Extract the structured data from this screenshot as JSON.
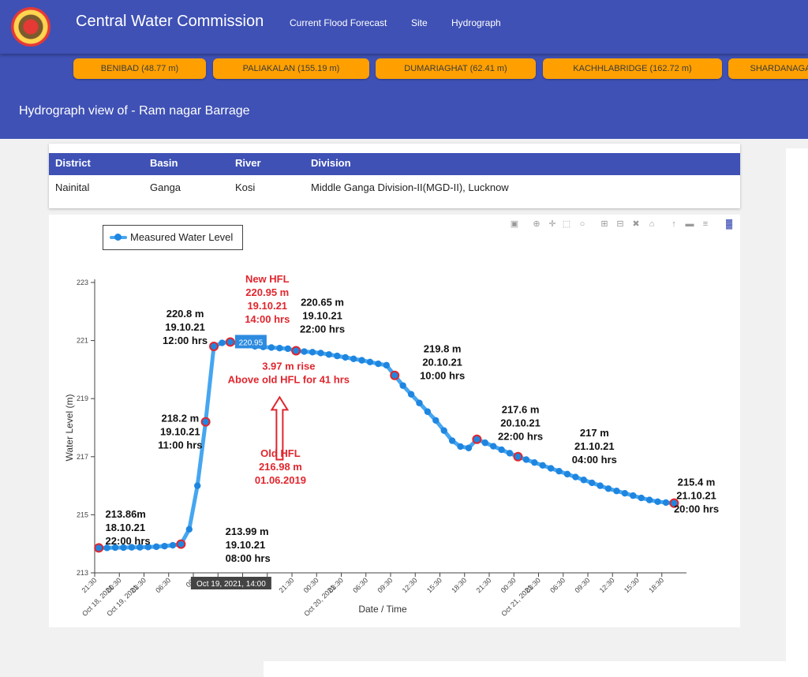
{
  "nav": {
    "brand": "Central Water Commission",
    "links": [
      "Current Flood Forecast",
      "Site",
      "Hydrograph"
    ]
  },
  "stations": [
    "BENIBAD (48.77 m)",
    "PALIAKALAN (155.19 m)",
    "DUMARIAGHAT (62.41 m)",
    "KACHHLABRIDGE (162.72 m)",
    "SHARDANAGAR"
  ],
  "page": {
    "title": "Hydrograph view of - Ram nagar Barrage"
  },
  "info": {
    "headers": {
      "district": "District",
      "basin": "Basin",
      "river": "River",
      "division": "Division"
    },
    "values": {
      "district": "Nainital",
      "basin": "Ganga",
      "river": "Kosi",
      "division": "Middle Ganga Division-II(MGD-II), Lucknow"
    }
  },
  "chart_data": {
    "type": "line",
    "series": [
      {
        "name": "Measured Water Level",
        "color": "#46a6f0",
        "marker_color": "#1f86e0"
      }
    ],
    "x_unit": "hours since 21:30, Oct 18, 2021",
    "x": [
      0.5,
      1.5,
      2.5,
      3.5,
      4.5,
      5.5,
      6.5,
      7.5,
      8.5,
      9.5,
      10.5,
      11.5,
      12.5,
      13.5,
      14.5,
      15.5,
      16.5,
      17.5,
      18.5,
      19.5,
      20.5,
      21.5,
      22.5,
      23.5,
      24.5,
      25.5,
      26.5,
      27.5,
      28.5,
      29.5,
      30.5,
      31.5,
      32.5,
      33.5,
      34.5,
      35.5,
      36.5,
      37.5,
      38.5,
      39.5,
      40.5,
      41.5,
      42.5,
      43.5,
      44.5,
      45.5,
      46.5,
      47.5,
      48.5,
      49.5,
      50.5,
      51.5,
      52.5,
      53.5,
      54.5,
      55.5,
      56.5,
      57.5,
      58.5,
      59.5,
      60.5,
      61.5,
      62.5,
      63.5,
      64.5,
      65.5,
      66.5,
      67.5,
      68.5,
      69.5,
      70.5
    ],
    "y": [
      213.86,
      213.86,
      213.87,
      213.87,
      213.88,
      213.88,
      213.89,
      213.9,
      213.92,
      213.95,
      213.99,
      214.5,
      216.0,
      218.2,
      220.8,
      220.92,
      220.95,
      220.9,
      220.85,
      220.8,
      220.78,
      220.76,
      220.74,
      220.72,
      220.65,
      220.62,
      220.6,
      220.57,
      220.52,
      220.47,
      220.42,
      220.37,
      220.32,
      220.26,
      220.2,
      220.15,
      219.8,
      219.45,
      219.15,
      218.85,
      218.55,
      218.25,
      217.9,
      217.55,
      217.35,
      217.3,
      217.6,
      217.48,
      217.36,
      217.24,
      217.12,
      217.0,
      216.9,
      216.8,
      216.7,
      216.6,
      216.5,
      216.4,
      216.3,
      216.2,
      216.1,
      216.0,
      215.9,
      215.82,
      215.74,
      215.66,
      215.58,
      215.51,
      215.45,
      215.42,
      215.4
    ],
    "ylim": [
      213,
      223
    ],
    "yticks": [
      213,
      215,
      217,
      219,
      221,
      223
    ],
    "xticks": [
      {
        "x": 0,
        "label": "21:30"
      },
      {
        "x": 3,
        "label": "00:30\nOct 18, 2021"
      },
      {
        "x": 6,
        "label": "03:30\nOct 19, 2021"
      },
      {
        "x": 9,
        "label": "06:30"
      },
      {
        "x": 12,
        "label": "09:"
      },
      {
        "x": 15,
        "label": "12:"
      },
      {
        "x": 18,
        "label": "15:"
      },
      {
        "x": 21,
        "label": "18:"
      },
      {
        "x": 24,
        "label": "21:30"
      },
      {
        "x": 27,
        "label": "00:30"
      },
      {
        "x": 30,
        "label": "03:30\nOct 20, 2021"
      },
      {
        "x": 33,
        "label": "06:30"
      },
      {
        "x": 36,
        "label": "09:30"
      },
      {
        "x": 39,
        "label": "12:30"
      },
      {
        "x": 42,
        "label": "15:30"
      },
      {
        "x": 45,
        "label": "18:30"
      },
      {
        "x": 48,
        "label": "21:30"
      },
      {
        "x": 51,
        "label": "00:30"
      },
      {
        "x": 54,
        "label": "03:30\nOct 21, 2021"
      },
      {
        "x": 57,
        "label": "06:30"
      },
      {
        "x": 60,
        "label": "09:30"
      },
      {
        "x": 63,
        "label": "12:30"
      },
      {
        "x": 66,
        "label": "15:30"
      },
      {
        "x": 69,
        "label": "18:30"
      }
    ],
    "xlabel": "Date / Time",
    "ylabel": "Water Level (m)",
    "highlight_points": [
      0.5,
      10.5,
      13.5,
      14.5,
      16.5,
      24.5,
      36.5,
      46.5,
      51.5,
      70.5
    ],
    "hover": {
      "x": 16.5,
      "value_label": "220.95",
      "x_label": "Oct 19, 2021, 14:00"
    },
    "legend_position": "top-left",
    "annotations": [
      {
        "x": 1.3,
        "y": 214.9,
        "color": "#111",
        "lines": [
          "213.86m",
          "18.10.21",
          "22:00 hrs"
        ],
        "align": "start"
      },
      {
        "x": 15.9,
        "y": 214.3,
        "color": "#111",
        "lines": [
          "213.99 m",
          "19.10.21",
          "08:00 hrs"
        ],
        "align": "start"
      },
      {
        "x": 10.4,
        "y": 218.2,
        "color": "#111",
        "lines": [
          "218.2 m",
          "19.10.21",
          "11:00 hrs"
        ],
        "align": "middle"
      },
      {
        "x": 11.0,
        "y": 221.8,
        "color": "#111",
        "lines": [
          "220.8 m",
          "19.10.21",
          "12:00 hrs"
        ],
        "align": "middle"
      },
      {
        "x": 21.0,
        "y": 223.0,
        "color": "#e0262e",
        "lines": [
          "New HFL",
          "220.95 m",
          "19.10.21",
          "14:00 hrs"
        ],
        "align": "middle"
      },
      {
        "x": 27.7,
        "y": 222.2,
        "color": "#111",
        "lines": [
          "220.65 m",
          "19.10.21",
          "22:00 hrs"
        ],
        "align": "middle"
      },
      {
        "x": 23.6,
        "y": 220.0,
        "color": "#e0262e",
        "lines": [
          "3.97 m rise",
          "Above old HFL for 41 hrs"
        ],
        "align": "middle"
      },
      {
        "x": 22.6,
        "y": 217.0,
        "color": "#e0262e",
        "lines": [
          "Old HFL",
          "216.98 m",
          "01.06.2019"
        ],
        "align": "middle"
      },
      {
        "x": 42.3,
        "y": 220.6,
        "color": "#111",
        "lines": [
          "219.8 m",
          "20.10.21",
          "10:00 hrs"
        ],
        "align": "middle"
      },
      {
        "x": 51.8,
        "y": 218.5,
        "color": "#111",
        "lines": [
          "217.6 m",
          "20.10.21",
          "22:00 hrs"
        ],
        "align": "middle"
      },
      {
        "x": 60.8,
        "y": 217.7,
        "color": "#111",
        "lines": [
          "217 m",
          "21.10.21",
          "04:00 hrs"
        ],
        "align": "middle"
      },
      {
        "x": 73.2,
        "y": 216.0,
        "color": "#111",
        "lines": [
          "215.4 m",
          "21.10.21",
          "20:00 hrs"
        ],
        "align": "middle"
      }
    ],
    "arrow": {
      "x": 22.5,
      "y_from": 216.9,
      "y_to": 219.05,
      "color": "#e0262e"
    }
  },
  "modebar_icons": [
    "camera-icon",
    "zoom-icon",
    "pan-icon",
    "box-select-icon",
    "lasso-icon",
    "zoom-in-icon",
    "zoom-out-icon",
    "autoscale-icon",
    "reset-axes-icon",
    "spike-lines-icon",
    "hover-closest-icon",
    "hover-compare-icon",
    "plotly-logo-icon"
  ]
}
